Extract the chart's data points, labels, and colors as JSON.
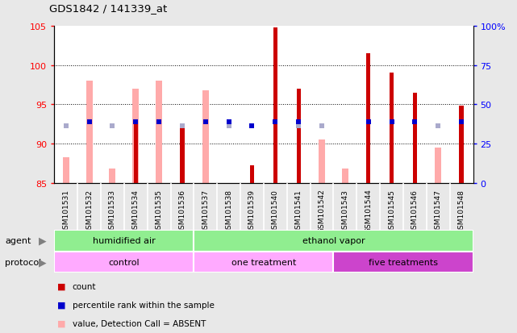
{
  "title": "GDS1842 / 141339_at",
  "samples": [
    "GSM101531",
    "GSM101532",
    "GSM101533",
    "GSM101534",
    "GSM101535",
    "GSM101536",
    "GSM101537",
    "GSM101538",
    "GSM101539",
    "GSM101540",
    "GSM101541",
    "GSM101542",
    "GSM101543",
    "GSM101544",
    "GSM101545",
    "GSM101546",
    "GSM101547",
    "GSM101548"
  ],
  "count_values": [
    null,
    null,
    85.0,
    92.5,
    null,
    92.5,
    null,
    null,
    87.2,
    104.8,
    97.0,
    null,
    null,
    101.5,
    99.0,
    96.5,
    null,
    94.8
  ],
  "percentile_values": [
    null,
    92.8,
    null,
    92.8,
    92.8,
    null,
    92.8,
    92.8,
    92.3,
    92.8,
    92.8,
    null,
    null,
    92.8,
    92.8,
    92.8,
    null,
    92.8
  ],
  "value_absent": [
    88.3,
    98.0,
    86.8,
    97.0,
    98.0,
    null,
    96.8,
    null,
    null,
    null,
    null,
    90.5,
    86.8,
    null,
    null,
    null,
    89.5,
    null
  ],
  "rank_absent": [
    92.3,
    null,
    92.3,
    null,
    null,
    92.3,
    null,
    92.3,
    null,
    null,
    92.3,
    92.3,
    null,
    null,
    null,
    null,
    92.3,
    null
  ],
  "ylim_left": [
    85,
    105
  ],
  "ylim_right": [
    0,
    100
  ],
  "yticks_left": [
    85,
    90,
    95,
    100,
    105
  ],
  "ytick_labels_left": [
    "85",
    "90",
    "95",
    "100",
    "105"
  ],
  "yticks_right": [
    0,
    25,
    50,
    75,
    100
  ],
  "ytick_labels_right": [
    "0",
    "25",
    "50",
    "75",
    "100%"
  ],
  "bar_color_dark_red": "#cc0000",
  "bar_color_pink": "#ffaaaa",
  "bar_color_blue_dark": "#0000cc",
  "bar_color_blue_light": "#aaaacc",
  "agent_label1": "humidified air",
  "agent_label2": "ethanol vapor",
  "agent_split": 6,
  "agent_color": "#90ee90",
  "proto_label1": "control",
  "proto_label2": "one treatment",
  "proto_label3": "five treatments",
  "proto_split1": 6,
  "proto_split2": 12,
  "proto_color1": "#ffaaff",
  "proto_color2": "#ffaaff",
  "proto_color3": "#cc44cc",
  "xticklabel_bg": "#d0d0d0",
  "plot_bg": "#ffffff",
  "fig_bg": "#e8e8e8"
}
